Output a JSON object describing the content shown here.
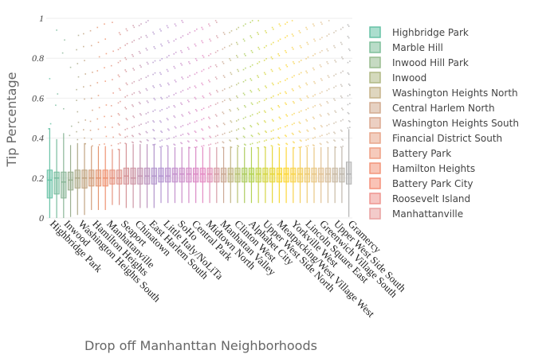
{
  "chart_data": {
    "type": "box",
    "xlabel": "Drop off Manhanttan Neighborhoods",
    "ylabel": "Tip Percentage",
    "ylim": [
      0,
      1
    ],
    "yticks": [
      0,
      0.2,
      0.4,
      0.6,
      0.8,
      1
    ],
    "legend_position": "right",
    "tick_labels": [
      "Highbridge Park",
      "Inwood",
      "Washington Heights South",
      "Hamilton Heights",
      "Manhattanville",
      "Seaport",
      "Chinatown",
      "East Harlem South",
      "Little Italy/NoLiTa",
      "SoHo",
      "Central Park",
      "Midtown North",
      "Manhattan Valley",
      "Clinton West",
      "Alphabet City",
      "Upper West Side North",
      "Meatpacking/West Village West",
      "Yorkville West",
      "Lincoln Square East",
      "Greenwich Village South",
      "Upper West Side South",
      "Gramercy"
    ],
    "legend": [
      "Highbridge Park",
      "Marble Hill",
      "Inwood Hill Park",
      "Inwood",
      "Washington Heights North",
      "Central Harlem North",
      "Washington Heights South",
      "Financial District South",
      "Battery Park",
      "Hamilton Heights",
      "Battery Park City",
      "Roosevelt Island",
      "Manhattanville"
    ],
    "legend_colors": [
      "#66c2a5",
      "#7fbf9a",
      "#98bc8f",
      "#b0b985",
      "#c5b48a",
      "#d2ab90",
      "#dca890",
      "#e8a68b",
      "#ef9f84",
      "#f3957a",
      "#f5917a",
      "#ef9590",
      "#e9a09f"
    ],
    "series_summary": {
      "n_boxes": 44,
      "medians": [
        0.19,
        0.2,
        0.18,
        0.19,
        0.2,
        0.2,
        0.2,
        0.2,
        0.2,
        0.2,
        0.2,
        0.21,
        0.2,
        0.21,
        0.21,
        0.21,
        0.21,
        0.21,
        0.22,
        0.22,
        0.22,
        0.22,
        0.22,
        0.22,
        0.22,
        0.22,
        0.22,
        0.22,
        0.22,
        0.22,
        0.22,
        0.22,
        0.22,
        0.22,
        0.22,
        0.22,
        0.22,
        0.22,
        0.22,
        0.22,
        0.22,
        0.22,
        0.22,
        0.22
      ],
      "q1": [
        0.1,
        0.12,
        0.1,
        0.14,
        0.15,
        0.15,
        0.16,
        0.16,
        0.16,
        0.17,
        0.17,
        0.17,
        0.17,
        0.17,
        0.17,
        0.17,
        0.18,
        0.18,
        0.18,
        0.18,
        0.18,
        0.18,
        0.18,
        0.18,
        0.18,
        0.18,
        0.18,
        0.18,
        0.18,
        0.18,
        0.18,
        0.18,
        0.18,
        0.18,
        0.18,
        0.18,
        0.18,
        0.18,
        0.18,
        0.18,
        0.18,
        0.18,
        0.18,
        0.17
      ],
      "q3": [
        0.24,
        0.23,
        0.23,
        0.23,
        0.24,
        0.24,
        0.24,
        0.24,
        0.24,
        0.24,
        0.24,
        0.25,
        0.25,
        0.25,
        0.25,
        0.25,
        0.25,
        0.25,
        0.25,
        0.25,
        0.25,
        0.25,
        0.25,
        0.25,
        0.25,
        0.25,
        0.25,
        0.25,
        0.25,
        0.25,
        0.25,
        0.25,
        0.25,
        0.25,
        0.25,
        0.25,
        0.25,
        0.25,
        0.25,
        0.25,
        0.25,
        0.25,
        0.25,
        0.28
      ]
    }
  }
}
